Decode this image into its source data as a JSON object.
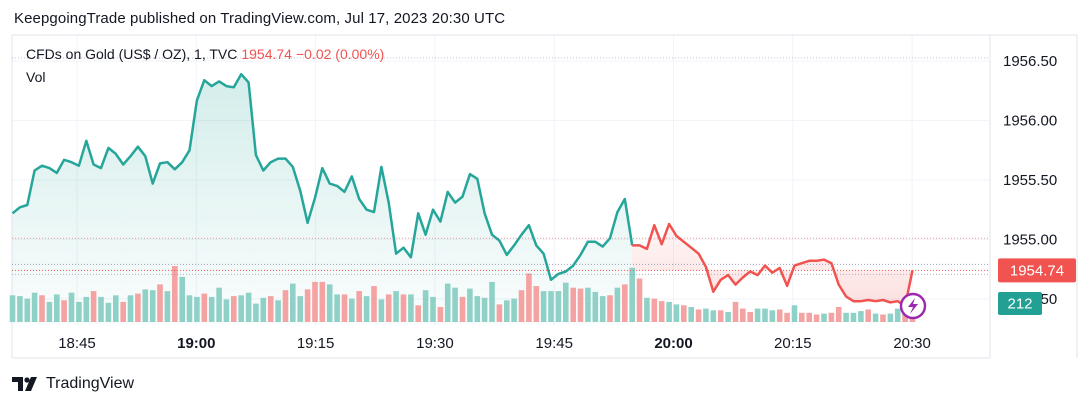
{
  "header": {
    "published": "KeepgoingTrade published on TradingView.com, Jul 17, 2023 20:30 UTC"
  },
  "legend": {
    "symbol": "CFDs on Gold (US$ / OZ), 1, TVC",
    "last": "1954.74",
    "change": "−0.02 (0.00%)",
    "volume_label": "Vol"
  },
  "badges": {
    "price": "1954.74",
    "volume": "212"
  },
  "footer": {
    "brand": "TradingView",
    "logo_icon": "tradingview-logo-icon"
  },
  "colors": {
    "up": "#26a69a",
    "down": "#f05350",
    "vol_up": "#8fd1c7",
    "vol_down": "#f4a3a2",
    "grid": "#f0f3fa",
    "axis_text": "#131722"
  },
  "chart_data": {
    "type": "line",
    "title": "CFDs on Gold (US$ / OZ), 1, TVC",
    "xlabel": "",
    "ylabel": "",
    "ylim": [
      1954.28,
      1956.72
    ],
    "y_ticks": [
      "1956.50",
      "1956.00",
      "1955.50",
      "1955.00",
      "1954.50"
    ],
    "x_ticks": [
      "18:45",
      "19:00",
      "19:15",
      "19:30",
      "19:45",
      "20:00",
      "20:15",
      "20:30"
    ],
    "x_tick_major": [
      false,
      true,
      false,
      false,
      false,
      true,
      false,
      false
    ],
    "x_minute_range": [
      -128,
      0
    ],
    "price_line": 1954.74,
    "reference_line": 1955.01,
    "series": [
      {
        "values": [
          1955.22,
          1955.27,
          1955.29,
          1955.58,
          1955.62,
          1955.6,
          1955.56,
          1955.67,
          1955.65,
          1955.62,
          1955.83,
          1955.63,
          1955.6,
          1955.77,
          1955.72,
          1955.63,
          1955.7,
          1955.78,
          1955.7,
          1955.47,
          1955.64,
          1955.65,
          1955.59,
          1955.65,
          1955.75,
          1956.17,
          1956.34,
          1956.29,
          1956.33,
          1956.29,
          1956.28,
          1956.39,
          1956.32,
          1955.71,
          1955.58,
          1955.65,
          1955.68,
          1955.68,
          1955.61,
          1955.41,
          1955.14,
          1955.35,
          1955.6,
          1955.47,
          1955.45,
          1955.4,
          1955.53,
          1955.34,
          1955.25,
          1955.23,
          1955.61,
          1955.31,
          1954.88,
          1954.93,
          1954.85,
          1955.22,
          1955.04,
          1955.25,
          1955.15,
          1955.4,
          1955.31,
          1955.36,
          1955.55,
          1955.51,
          1955.22,
          1955.04,
          1954.99,
          1954.87,
          1954.95,
          1955.04,
          1955.12,
          1954.95,
          1954.88,
          1954.66,
          1954.71,
          1954.73,
          1954.78,
          1954.87,
          1954.98,
          1954.98,
          1954.94,
          1955.01,
          1955.23,
          1955.34,
          1954.95,
          1954.95,
          1954.92,
          1955.12,
          1954.96,
          1955.13,
          1955.03,
          1954.98,
          1954.93,
          1954.88,
          1954.77,
          1954.56,
          1954.66,
          1954.7,
          1954.62,
          1954.68,
          1954.73,
          1954.7,
          1954.78,
          1954.72,
          1954.76,
          1954.61,
          1954.78,
          1954.8,
          1954.82,
          1954.82,
          1954.83,
          1954.8,
          1954.62,
          1954.52,
          1954.48,
          1954.48,
          1954.49,
          1954.48,
          1954.49,
          1954.47,
          1954.48,
          1954.44,
          1954.74
        ]
      }
    ],
    "volume": [
      [
        32,
        1
      ],
      [
        31,
        1
      ],
      [
        28,
        1
      ],
      [
        35,
        1
      ],
      [
        32,
        0
      ],
      [
        24,
        1
      ],
      [
        33,
        1
      ],
      [
        26,
        0
      ],
      [
        35,
        1
      ],
      [
        24,
        1
      ],
      [
        30,
        1
      ],
      [
        37,
        0
      ],
      [
        30,
        1
      ],
      [
        23,
        1
      ],
      [
        32,
        1
      ],
      [
        24,
        0
      ],
      [
        32,
        1
      ],
      [
        34,
        0
      ],
      [
        39,
        1
      ],
      [
        38,
        1
      ],
      [
        45,
        0
      ],
      [
        37,
        1
      ],
      [
        67,
        0
      ],
      [
        54,
        1
      ],
      [
        32,
        1
      ],
      [
        30,
        1
      ],
      [
        34,
        0
      ],
      [
        30,
        1
      ],
      [
        41,
        1
      ],
      [
        27,
        1
      ],
      [
        31,
        0
      ],
      [
        32,
        1
      ],
      [
        35,
        1
      ],
      [
        22,
        1
      ],
      [
        29,
        1
      ],
      [
        31,
        0
      ],
      [
        26,
        1
      ],
      [
        38,
        0
      ],
      [
        46,
        1
      ],
      [
        31,
        1
      ],
      [
        39,
        0
      ],
      [
        48,
        0
      ],
      [
        48,
        0
      ],
      [
        45,
        1
      ],
      [
        33,
        1
      ],
      [
        33,
        0
      ],
      [
        28,
        1
      ],
      [
        37,
        0
      ],
      [
        31,
        1
      ],
      [
        43,
        0
      ],
      [
        27,
        1
      ],
      [
        33,
        0
      ],
      [
        37,
        1
      ],
      [
        33,
        0
      ],
      [
        33,
        1
      ],
      [
        20,
        0
      ],
      [
        38,
        1
      ],
      [
        30,
        1
      ],
      [
        18,
        0
      ],
      [
        46,
        1
      ],
      [
        41,
        1
      ],
      [
        30,
        0
      ],
      [
        40,
        1
      ],
      [
        31,
        1
      ],
      [
        29,
        1
      ],
      [
        48,
        1
      ],
      [
        21,
        0
      ],
      [
        26,
        1
      ],
      [
        28,
        1
      ],
      [
        38,
        0
      ],
      [
        58,
        0
      ],
      [
        43,
        0
      ],
      [
        37,
        1
      ],
      [
        37,
        1
      ],
      [
        37,
        1
      ],
      [
        47,
        1
      ],
      [
        41,
        0
      ],
      [
        40,
        0
      ],
      [
        41,
        1
      ],
      [
        36,
        1
      ],
      [
        31,
        1
      ],
      [
        32,
        0
      ],
      [
        41,
        1
      ],
      [
        45,
        0
      ],
      [
        65,
        1
      ],
      [
        52,
        0
      ],
      [
        29,
        1
      ],
      [
        28,
        0
      ],
      [
        25,
        0
      ],
      [
        24,
        1
      ],
      [
        21,
        1
      ],
      [
        20,
        0
      ],
      [
        18,
        1
      ],
      [
        15,
        0
      ],
      [
        16,
        1
      ],
      [
        14,
        1
      ],
      [
        14,
        0
      ],
      [
        12,
        1
      ],
      [
        24,
        0
      ],
      [
        16,
        0
      ],
      [
        12,
        0
      ],
      [
        16,
        1
      ],
      [
        16,
        1
      ],
      [
        14,
        1
      ],
      [
        15,
        0
      ],
      [
        11,
        0
      ],
      [
        20,
        1
      ],
      [
        11,
        0
      ],
      [
        11,
        0
      ],
      [
        9,
        0
      ],
      [
        10,
        1
      ],
      [
        11,
        0
      ],
      [
        18,
        0
      ],
      [
        11,
        1
      ],
      [
        11,
        1
      ],
      [
        13,
        1
      ],
      [
        15,
        0
      ],
      [
        10,
        1
      ],
      [
        9,
        0
      ],
      [
        10,
        1
      ],
      [
        16,
        1
      ],
      [
        12,
        0
      ],
      [
        9,
        0
      ]
    ]
  }
}
